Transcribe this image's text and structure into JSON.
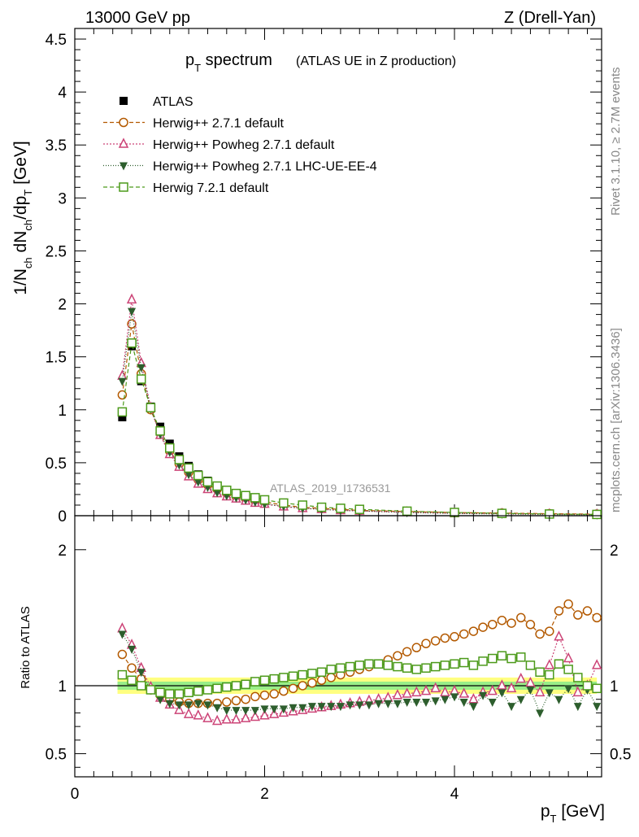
{
  "header": {
    "left": "13000 GeV pp",
    "right": "Z (Drell-Yan)"
  },
  "title": {
    "main": "p",
    "main_sub": "T",
    "main_rest": " spectrum",
    "small": "(ATLAS UE in Z production)"
  },
  "analysis_label": "ATLAS_2019_I1736531",
  "side_labels": {
    "rivet": "Rivet 3.1.10, ≥ 2.7M events",
    "mcplots": "mcplots.cern.ch [arXiv:1306.3436]"
  },
  "axes": {
    "ylabel_top": "1/N_ch dN_ch/dp_T [GeV]",
    "ylabel_bottom": "Ratio to ATLAS",
    "xlabel": "p_T [GeV]"
  },
  "legend": [
    {
      "label": "ATLAS",
      "color": "#000000",
      "marker": "square-filled"
    },
    {
      "label": "Herwig++ 2.7.1 default",
      "color": "#b35900",
      "marker": "circle-open"
    },
    {
      "label": "Herwig++ Powheg 2.7.1 default",
      "color": "#cc4477",
      "marker": "triangle-up-open"
    },
    {
      "label": "Herwig++ Powheg 2.7.1 LHC-UE-EE-4",
      "color": "#2d5e2d",
      "marker": "triangle-down-filled"
    },
    {
      "label": "Herwig 7.2.1 default",
      "color": "#4c9a1a",
      "marker": "square-open"
    }
  ],
  "chart_data": {
    "type": "scatter",
    "x_range": [
      0,
      5.55
    ],
    "top": {
      "ylim": [
        0,
        4.6
      ],
      "yticks": [
        "0",
        "0.5",
        "1",
        "1.5",
        "2",
        "2.5",
        "3",
        "3.5",
        "4",
        "4.5"
      ],
      "xticks": [
        "0",
        "2",
        "4"
      ],
      "x": [
        0.5,
        0.6,
        0.7,
        0.8,
        0.9,
        1.0,
        1.1,
        1.2,
        1.3,
        1.4,
        1.5,
        1.6,
        1.7,
        1.8,
        1.9,
        2.0,
        2.2,
        2.4,
        2.6,
        2.8,
        3.0,
        3.5,
        4.0,
        4.5,
        5.0,
        5.5
      ],
      "series": [
        {
          "name": "ATLAS",
          "values": [
            0.93,
            1.6,
            1.27,
            1.03,
            0.84,
            0.68,
            0.56,
            0.47,
            0.39,
            0.33,
            0.28,
            0.24,
            0.21,
            0.18,
            0.16,
            0.14,
            0.11,
            0.09,
            0.07,
            0.06,
            0.05,
            0.035,
            0.025,
            0.018,
            0.013,
            0.01
          ]
        },
        {
          "name": "Herwig++ 2.7.1 default",
          "values": [
            1.14,
            1.81,
            1.34,
            1.0,
            0.78,
            0.61,
            0.49,
            0.41,
            0.34,
            0.29,
            0.25,
            0.21,
            0.18,
            0.16,
            0.14,
            0.13,
            0.1,
            0.08,
            0.07,
            0.06,
            0.05,
            0.04,
            0.03,
            0.025,
            0.019,
            0.015
          ]
        },
        {
          "name": "Herwig++ Powheg 2.7.1 default",
          "values": [
            1.32,
            2.04,
            1.44,
            1.02,
            0.76,
            0.58,
            0.46,
            0.37,
            0.3,
            0.25,
            0.21,
            0.18,
            0.16,
            0.14,
            0.12,
            0.11,
            0.085,
            0.07,
            0.06,
            0.05,
            0.045,
            0.032,
            0.023,
            0.018,
            0.014,
            0.011
          ]
        },
        {
          "name": "Herwig++ Powheg 2.7.1 LHC-UE-EE-4",
          "values": [
            1.27,
            1.93,
            1.4,
            1.01,
            0.77,
            0.6,
            0.48,
            0.39,
            0.32,
            0.27,
            0.22,
            0.19,
            0.17,
            0.15,
            0.13,
            0.11,
            0.09,
            0.07,
            0.06,
            0.05,
            0.045,
            0.03,
            0.021,
            0.016,
            0.011,
            0.009
          ]
        },
        {
          "name": "Herwig 7.2.1 default",
          "values": [
            0.98,
            1.63,
            1.29,
            1.02,
            0.8,
            0.64,
            0.53,
            0.45,
            0.38,
            0.32,
            0.28,
            0.24,
            0.21,
            0.19,
            0.17,
            0.15,
            0.12,
            0.1,
            0.08,
            0.07,
            0.06,
            0.043,
            0.031,
            0.022,
            0.016,
            0.012
          ]
        }
      ]
    },
    "bottom": {
      "ylim": [
        0.33,
        2.25
      ],
      "yticks": [
        {
          "v": 0.5,
          "label": "0.5"
        },
        {
          "v": 1,
          "label": "1"
        },
        {
          "v": 2,
          "label": "2"
        }
      ],
      "band_inner": 0.03,
      "band_outer": 0.06,
      "x": [
        0.5,
        0.6,
        0.7,
        0.8,
        0.9,
        1.0,
        1.1,
        1.2,
        1.3,
        1.4,
        1.5,
        1.6,
        1.7,
        1.8,
        1.9,
        2.0,
        2.1,
        2.2,
        2.3,
        2.4,
        2.5,
        2.6,
        2.7,
        2.8,
        2.9,
        3.0,
        3.1,
        3.2,
        3.3,
        3.4,
        3.5,
        3.6,
        3.7,
        3.8,
        3.9,
        4.0,
        4.1,
        4.2,
        4.3,
        4.4,
        4.5,
        4.6,
        4.7,
        4.8,
        4.9,
        5.0,
        5.1,
        5.2,
        5.3,
        5.4,
        5.5
      ],
      "series": [
        {
          "name": "Herwig++ 2.7.1 default",
          "values": [
            1.23,
            1.13,
            1.05,
            0.97,
            0.93,
            0.9,
            0.88,
            0.87,
            0.87,
            0.87,
            0.87,
            0.88,
            0.89,
            0.9,
            0.92,
            0.93,
            0.94,
            0.96,
            0.98,
            1.0,
            1.02,
            1.04,
            1.06,
            1.08,
            1.1,
            1.12,
            1.14,
            1.16,
            1.19,
            1.22,
            1.25,
            1.28,
            1.31,
            1.33,
            1.35,
            1.36,
            1.38,
            1.4,
            1.43,
            1.45,
            1.48,
            1.46,
            1.5,
            1.45,
            1.38,
            1.4,
            1.55,
            1.6,
            1.52,
            1.55,
            1.5
          ]
        },
        {
          "name": "Herwig++ Powheg 2.7.1 default",
          "values": [
            1.42,
            1.3,
            1.13,
            0.99,
            0.91,
            0.86,
            0.82,
            0.79,
            0.78,
            0.76,
            0.74,
            0.75,
            0.75,
            0.76,
            0.77,
            0.78,
            0.79,
            0.8,
            0.81,
            0.82,
            0.83,
            0.84,
            0.85,
            0.86,
            0.87,
            0.88,
            0.89,
            0.9,
            0.91,
            0.93,
            0.94,
            0.95,
            0.96,
            0.98,
            0.95,
            0.96,
            0.94,
            0.9,
            0.95,
            0.96,
            1.0,
            0.98,
            1.05,
            1.02,
            0.95,
            1.15,
            1.36,
            1.2,
            0.95,
            1.0,
            1.15
          ]
        },
        {
          "name": "Herwig++ Powheg 2.7.1 LHC-UE-EE-4",
          "values": [
            1.38,
            1.27,
            1.1,
            0.97,
            0.9,
            0.87,
            0.86,
            0.86,
            0.87,
            0.86,
            0.84,
            0.82,
            0.82,
            0.82,
            0.82,
            0.83,
            0.83,
            0.83,
            0.84,
            0.84,
            0.85,
            0.85,
            0.85,
            0.85,
            0.86,
            0.86,
            0.86,
            0.87,
            0.87,
            0.87,
            0.88,
            0.88,
            0.88,
            0.89,
            0.9,
            0.92,
            0.88,
            0.85,
            0.93,
            0.88,
            0.95,
            0.85,
            0.9,
            0.97,
            0.8,
            0.95,
            0.9,
            0.98,
            0.85,
            0.97,
            0.85
          ]
        },
        {
          "name": "Herwig 7.2.1 default",
          "values": [
            1.08,
            1.04,
            1.0,
            0.97,
            0.95,
            0.94,
            0.94,
            0.95,
            0.96,
            0.97,
            0.98,
            0.99,
            1.0,
            1.01,
            1.03,
            1.04,
            1.05,
            1.06,
            1.07,
            1.08,
            1.09,
            1.1,
            1.12,
            1.13,
            1.14,
            1.15,
            1.16,
            1.16,
            1.15,
            1.14,
            1.13,
            1.12,
            1.13,
            1.14,
            1.15,
            1.16,
            1.17,
            1.15,
            1.18,
            1.2,
            1.22,
            1.2,
            1.21,
            1.15,
            1.1,
            1.08,
            1.16,
            1.12,
            1.06,
            1.0,
            0.98
          ]
        }
      ]
    }
  }
}
